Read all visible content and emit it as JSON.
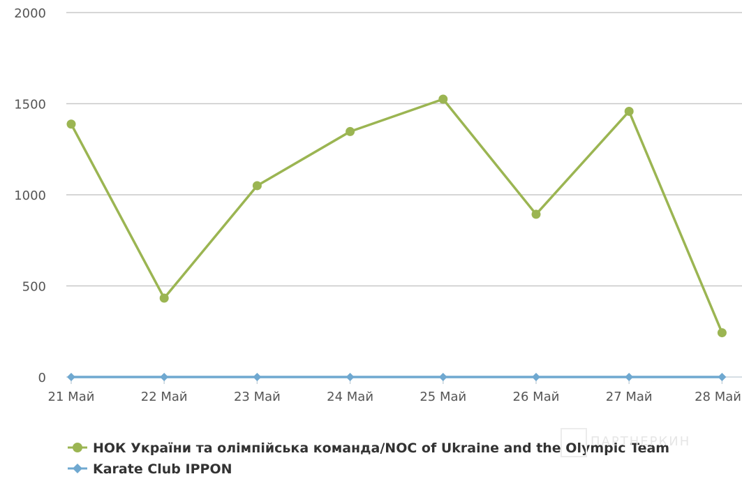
{
  "chart_data": {
    "type": "line",
    "categories": [
      "21 Май",
      "22 Май",
      "23 Май",
      "24 Май",
      "25 Май",
      "26 Май",
      "27 Май",
      "28 Май"
    ],
    "series": [
      {
        "name": "НОК України та олімпійська команда/NOC of Ukraine and the Olympic Team",
        "color": "#9bb552",
        "marker": "circle",
        "values": [
          1388,
          433,
          1050,
          1347,
          1525,
          893,
          1458,
          243
        ]
      },
      {
        "name": "Karate Club IPPON",
        "color": "#6fa8d0",
        "marker": "diamond",
        "values": [
          0,
          0,
          0,
          0,
          0,
          0,
          0,
          0
        ]
      }
    ],
    "yticks": [
      "0",
      "500",
      "1000",
      "1500",
      "2000"
    ],
    "ylim": [
      0,
      2000
    ],
    "grid": true,
    "legend_position": "bottom-left"
  },
  "watermark": "ПАРТНЕРКИН"
}
